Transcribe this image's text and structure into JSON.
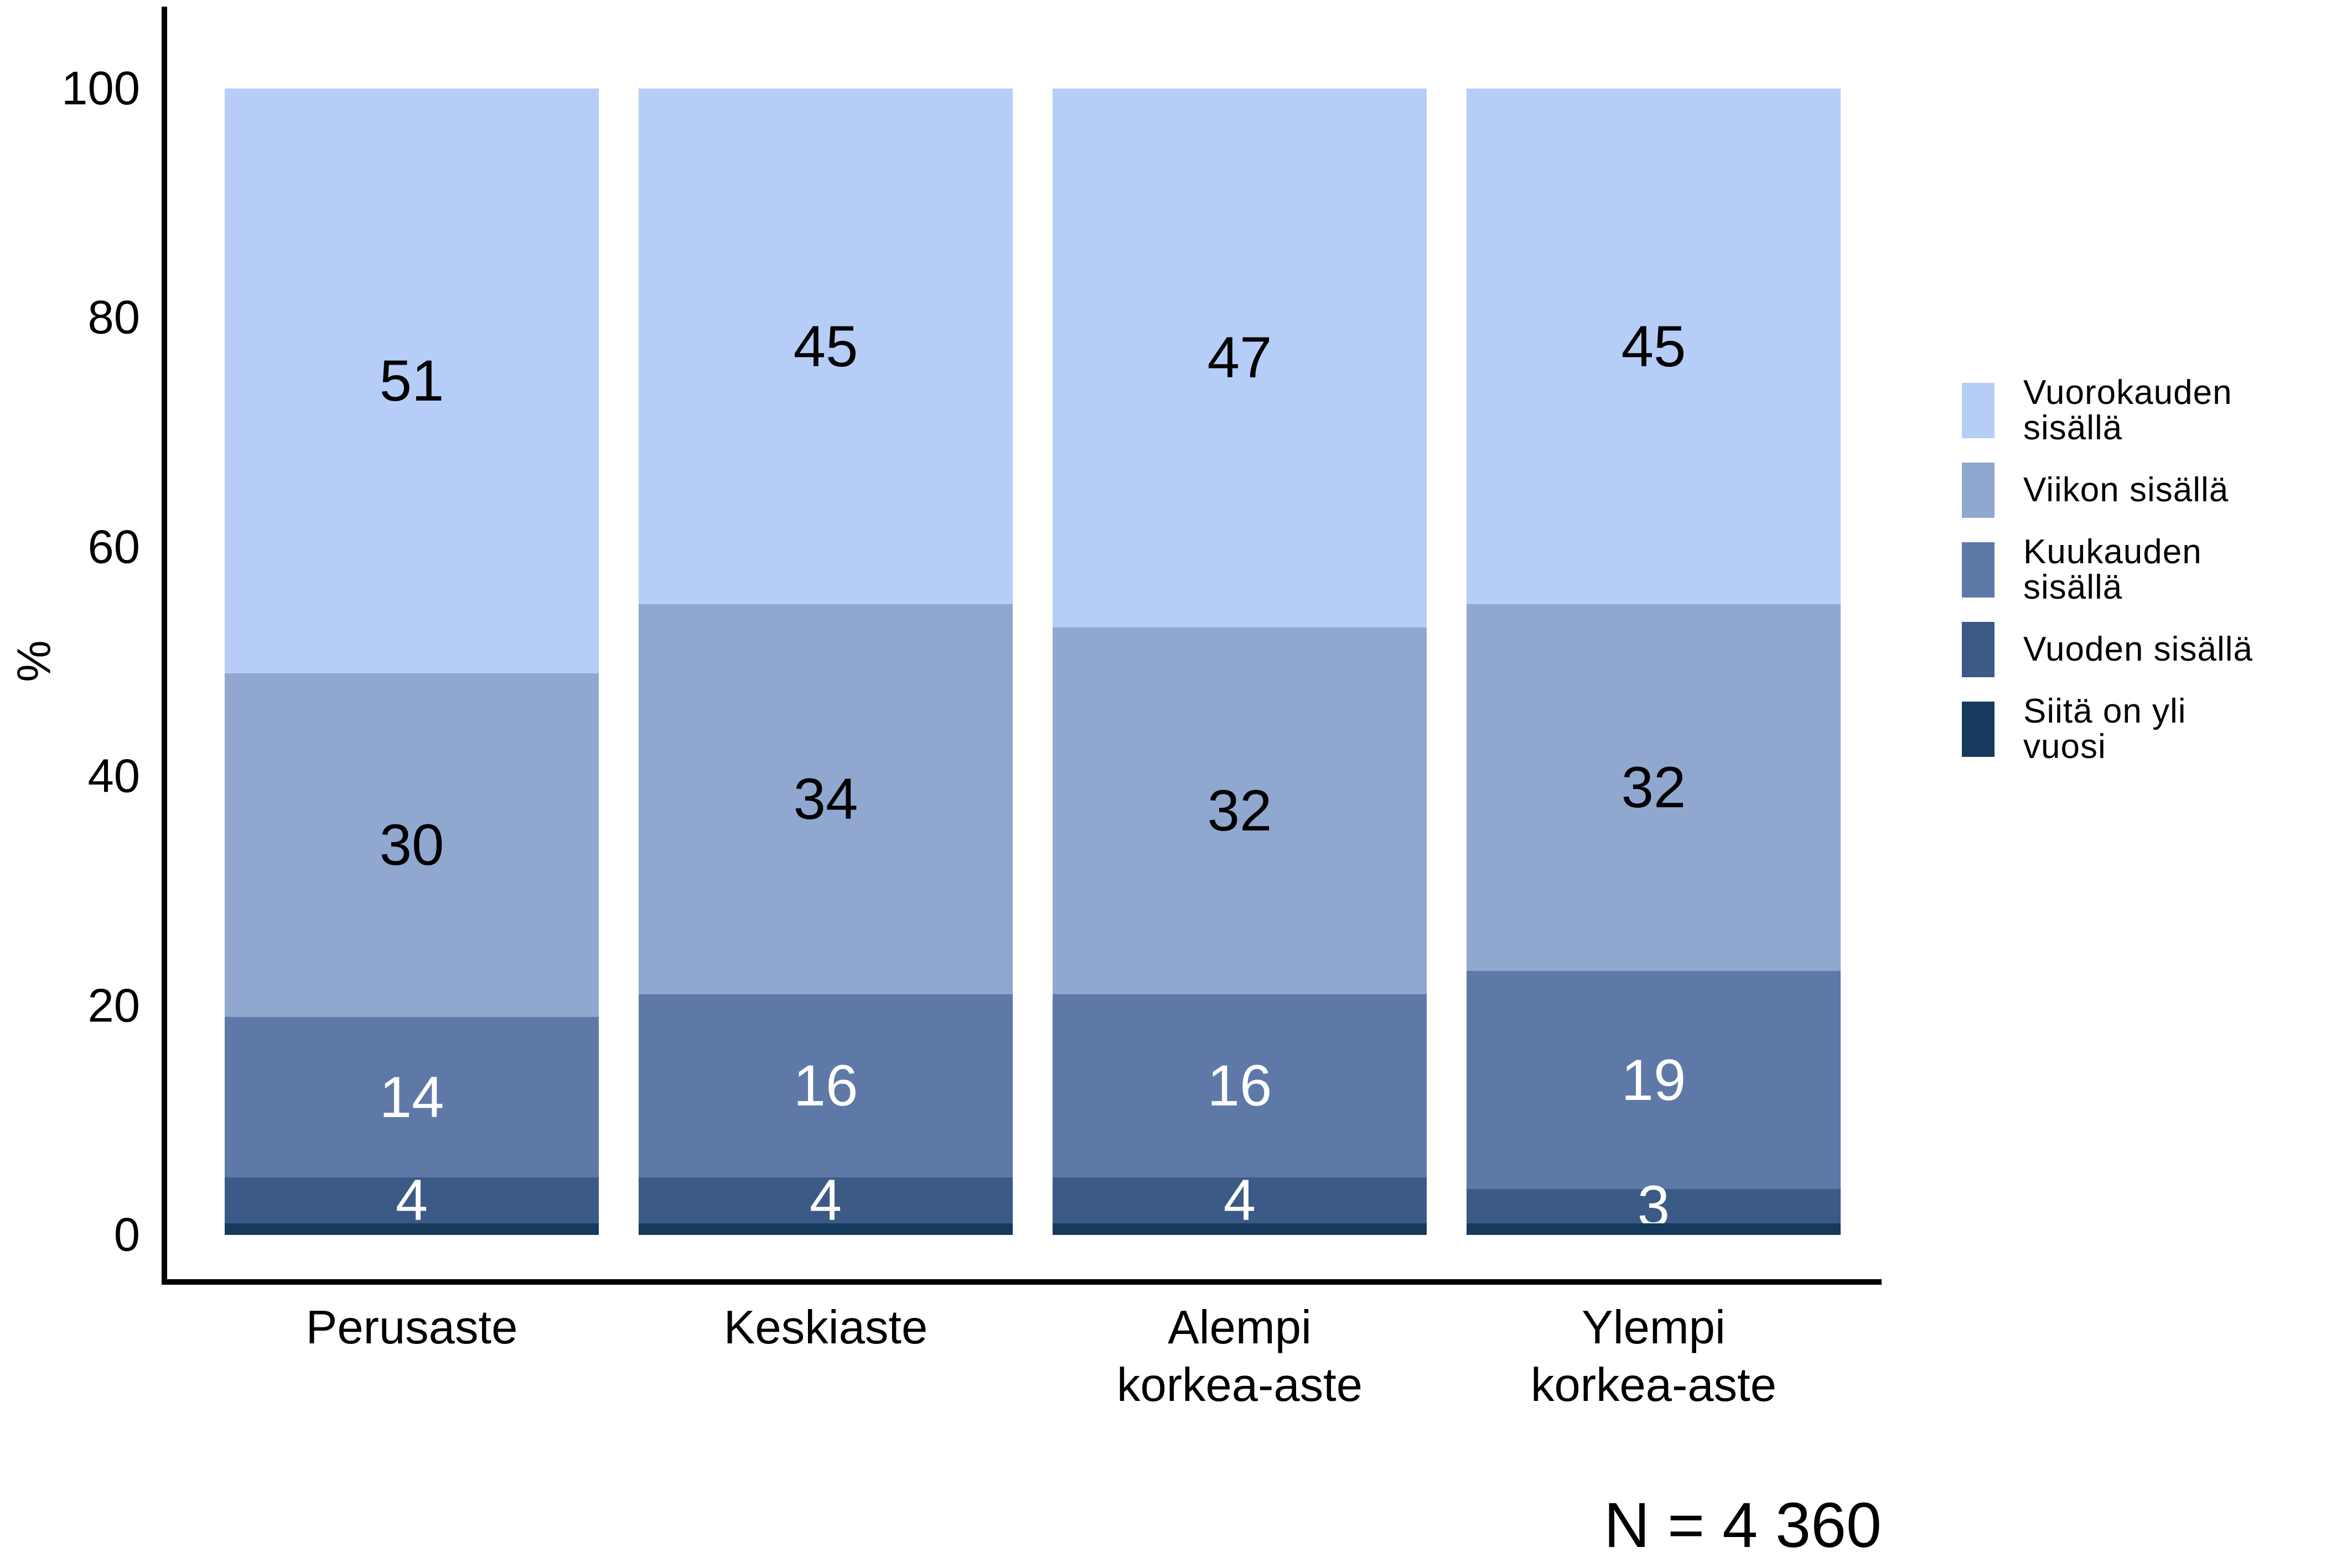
{
  "chart_data": {
    "type": "bar",
    "stacked": true,
    "title": "",
    "xlabel": "",
    "ylabel": "%",
    "ylim": [
      0,
      100
    ],
    "yticks": [
      0,
      20,
      40,
      60,
      80,
      100
    ],
    "grid": false,
    "legend_position": "right",
    "background": "#ffffff",
    "axis_color": "#000000",
    "text_color": "#000000",
    "categories": [
      {
        "name": "Perusaste",
        "lines": [
          "Perusaste"
        ]
      },
      {
        "name": "Keskiaste",
        "lines": [
          "Keskiaste"
        ]
      },
      {
        "name": "Alempi korkea-aste",
        "lines": [
          "Alempi",
          "korkea-aste"
        ]
      },
      {
        "name": "Ylempi korkea-aste",
        "lines": [
          "Ylempi",
          "korkea-aste"
        ]
      }
    ],
    "series": [
      {
        "name": "Vuorokauden sisällä",
        "legend_lines": [
          "Vuorokauden",
          "sisällä"
        ],
        "color": "#b5cdf7",
        "label_color": "#000000",
        "show_labels": true,
        "values": [
          51,
          45,
          47,
          45
        ]
      },
      {
        "name": "Viikon sisällä",
        "legend_lines": [
          "Viikon sisällä"
        ],
        "color": "#90a7d0",
        "label_color": "#000000",
        "show_labels": true,
        "values": [
          30,
          34,
          32,
          32
        ]
      },
      {
        "name": "Kuukauden sisällä",
        "legend_lines": [
          "Kuukauden",
          "sisällä"
        ],
        "color": "#5e79a7",
        "label_color": "#ffffff",
        "show_labels": true,
        "values": [
          14,
          16,
          16,
          19
        ]
      },
      {
        "name": "Vuoden sisällä",
        "legend_lines": [
          "Vuoden sisällä"
        ],
        "color": "#3b5a85",
        "label_color": "#ffffff",
        "show_labels": true,
        "values": [
          4,
          4,
          4,
          3
        ]
      },
      {
        "name": "Siitä on yli vuosi",
        "legend_lines": [
          "Siitä on yli",
          "vuosi"
        ],
        "color": "#163a5e",
        "label_color": "#ffffff",
        "show_labels": false,
        "values": [
          1,
          1,
          1,
          1
        ]
      }
    ],
    "note": "N = 4 360"
  }
}
